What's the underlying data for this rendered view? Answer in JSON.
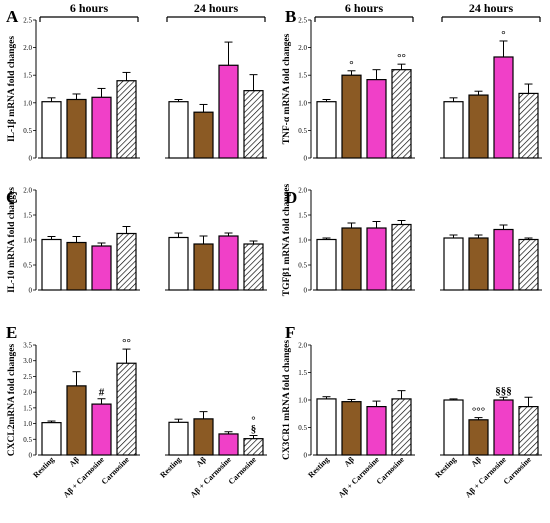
{
  "figure": {
    "colors": {
      "resting": "#ffffff",
      "abeta": "#8B5A24",
      "abeta_carnosine": "#F040C8",
      "carnosine": "hatch"
    },
    "time_labels": [
      "6 hours",
      "24 hours"
    ]
  },
  "chart_data": [
    {
      "type": "bar",
      "panel": "A",
      "ylabel": "IL-1β mRNA fold changes",
      "ylim": [
        0,
        2.5
      ],
      "ticks": [
        "0",
        "0.5",
        "1.0",
        "1.5",
        "2.0",
        "2.5"
      ],
      "time_labels": [
        "6 hours",
        "24 hours"
      ],
      "categories": [],
      "groups": [
        {
          "time": "6 hours",
          "values": [
            1.02,
            1.06,
            1.1,
            1.4
          ],
          "errors": [
            0.07,
            0.1,
            0.16,
            0.15
          ],
          "annotations": [
            "",
            "",
            "",
            ""
          ]
        },
        {
          "time": "24 hours",
          "values": [
            1.02,
            0.83,
            1.68,
            1.22
          ],
          "errors": [
            0.04,
            0.14,
            0.42,
            0.29
          ],
          "annotations": [
            "",
            "",
            "",
            ""
          ]
        }
      ]
    },
    {
      "type": "bar",
      "panel": "B",
      "ylabel": "TNF-α mRNA fold changes",
      "ylim": [
        0,
        2.5
      ],
      "ticks": [
        "0",
        "0.5",
        "1.0",
        "1.5",
        "2.0",
        "2.5"
      ],
      "time_labels": [
        "6 hours",
        "24 hours"
      ],
      "categories": [],
      "groups": [
        {
          "time": "6 hours",
          "values": [
            1.02,
            1.5,
            1.42,
            1.6
          ],
          "errors": [
            0.04,
            0.08,
            0.18,
            0.1
          ],
          "annotations": [
            "",
            "°",
            "",
            "°°"
          ]
        },
        {
          "time": "24 hours",
          "values": [
            1.02,
            1.14,
            1.83,
            1.17
          ],
          "errors": [
            0.07,
            0.07,
            0.29,
            0.17
          ],
          "annotations": [
            "",
            "",
            "°",
            ""
          ]
        }
      ]
    },
    {
      "type": "bar",
      "panel": "C",
      "ylabel": "IL-10 mRNA fold changes",
      "ylim": [
        0,
        2.0
      ],
      "ticks": [
        "0",
        "0.5",
        "1.0",
        "1.5",
        "2.0"
      ],
      "time_labels": [],
      "categories": [],
      "groups": [
        {
          "time": "6 hours",
          "values": [
            1.01,
            0.95,
            0.88,
            1.13
          ],
          "errors": [
            0.06,
            0.12,
            0.06,
            0.14
          ],
          "annotations": [
            "",
            "",
            "",
            ""
          ]
        },
        {
          "time": "24 hours",
          "values": [
            1.05,
            0.92,
            1.08,
            0.92
          ],
          "errors": [
            0.09,
            0.16,
            0.06,
            0.06
          ],
          "annotations": [
            "",
            "",
            "",
            ""
          ]
        }
      ]
    },
    {
      "type": "bar",
      "panel": "D",
      "ylabel": "TGFβ1 mRNA fold changes",
      "ylim": [
        0,
        2.0
      ],
      "ticks": [
        "0",
        "0.5",
        "1.0",
        "1.5",
        "2.0"
      ],
      "time_labels": [],
      "categories": [],
      "groups": [
        {
          "time": "6 hours",
          "values": [
            1.01,
            1.24,
            1.24,
            1.31
          ],
          "errors": [
            0.03,
            0.1,
            0.13,
            0.08
          ],
          "annotations": [
            "",
            "",
            "",
            ""
          ]
        },
        {
          "time": "24 hours",
          "values": [
            1.04,
            1.04,
            1.21,
            1.01
          ],
          "errors": [
            0.06,
            0.06,
            0.09,
            0.03
          ],
          "annotations": [
            "",
            "",
            "",
            ""
          ]
        }
      ]
    },
    {
      "type": "bar",
      "panel": "E",
      "ylabel": "CXCL2mRNA fold changes",
      "ylim": [
        0,
        3.5
      ],
      "ticks": [
        "0",
        "0.5",
        "1.0",
        "1.5",
        "2.0",
        "2.5",
        "3.0",
        "3.5"
      ],
      "time_labels": [],
      "categories": [
        "Resting",
        "Aβ",
        "Aβ + Carnosine",
        "Carnosine"
      ],
      "groups": [
        {
          "time": "6 hours",
          "values": [
            1.03,
            2.2,
            1.62,
            2.92
          ],
          "errors": [
            0.05,
            0.45,
            0.17,
            0.45
          ],
          "annotations": [
            "",
            "",
            "#",
            "°°"
          ]
        },
        {
          "time": "24 hours",
          "values": [
            1.04,
            1.15,
            0.67,
            0.52
          ],
          "errors": [
            0.1,
            0.23,
            0.07,
            0.1
          ],
          "annotations": [
            "",
            "",
            "",
            "°\n§"
          ]
        }
      ]
    },
    {
      "type": "bar",
      "panel": "F",
      "ylabel": "CX3CR1 mRNA fold changes",
      "ylim": [
        0,
        2.0
      ],
      "ticks": [
        "0",
        "0.5",
        "1.0",
        "1.5",
        "2.0"
      ],
      "time_labels": [],
      "categories": [
        "Resting",
        "Aβ",
        "Aβ + Carnosine",
        "Carnosine"
      ],
      "groups": [
        {
          "time": "6 hours",
          "values": [
            1.02,
            0.97,
            0.88,
            1.02
          ],
          "errors": [
            0.04,
            0.04,
            0.1,
            0.15
          ],
          "annotations": [
            "",
            "",
            "",
            ""
          ]
        },
        {
          "time": "24 hours",
          "values": [
            1.0,
            0.64,
            1.0,
            0.88
          ],
          "errors": [
            0.02,
            0.04,
            0.05,
            0.17
          ],
          "annotations": [
            "",
            "°°°",
            "§§§",
            ""
          ]
        }
      ]
    }
  ]
}
